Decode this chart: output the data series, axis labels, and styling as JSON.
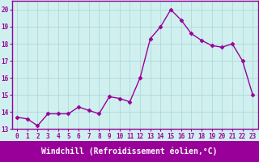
{
  "x": [
    0,
    1,
    2,
    3,
    4,
    5,
    6,
    7,
    8,
    9,
    10,
    11,
    12,
    13,
    14,
    15,
    16,
    17,
    18,
    19,
    20,
    21,
    22,
    23
  ],
  "y": [
    13.7,
    13.6,
    13.2,
    13.9,
    13.9,
    13.9,
    14.3,
    14.1,
    13.9,
    14.9,
    14.8,
    14.6,
    16.0,
    18.3,
    19.0,
    20.0,
    19.4,
    18.6,
    18.2,
    17.9,
    17.8,
    18.0,
    17.0,
    15.0
  ],
  "line_color": "#990099",
  "marker": "D",
  "marker_size": 2.5,
  "bg_color": "#d0f0f0",
  "grid_color": "#b0d8d8",
  "xlabel": "Windchill (Refroidissement éolien,°C)",
  "xlabel_bg": "#990099",
  "xlabel_color": "#ffffff",
  "ylim": [
    13,
    20.5
  ],
  "xlim": [
    -0.5,
    23.5
  ],
  "yticks": [
    13,
    14,
    15,
    16,
    17,
    18,
    19,
    20
  ],
  "xticks": [
    0,
    1,
    2,
    3,
    4,
    5,
    6,
    7,
    8,
    9,
    10,
    11,
    12,
    13,
    14,
    15,
    16,
    17,
    18,
    19,
    20,
    21,
    22,
    23
  ],
  "tick_fontsize": 5.5,
  "xlabel_fontsize": 7,
  "line_width": 1.0,
  "tick_color": "#990099",
  "spine_color": "#990099"
}
